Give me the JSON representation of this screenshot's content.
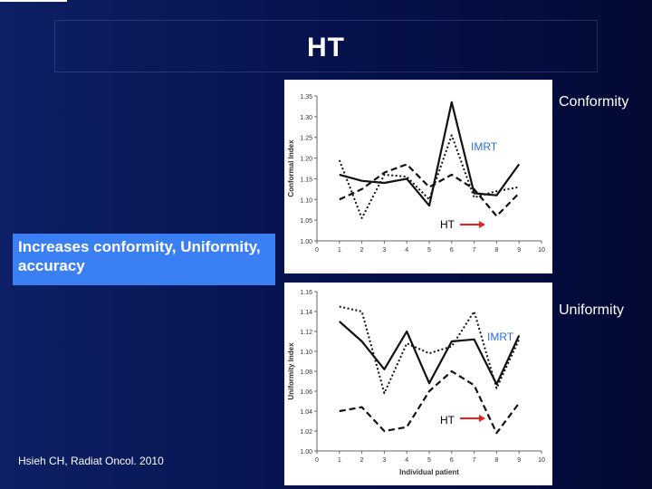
{
  "slide": {
    "title": "HT",
    "callout": "Increases conformity, Uniformity, accuracy",
    "citation": "Hsieh CH, Radiat Oncol. 2010",
    "labels": {
      "conformity": "Conformity",
      "uniformity": "Uniformity",
      "imrt_top": "IMRT",
      "ht_top": "HT",
      "imrt_bottom": "IMRT",
      "ht_bottom": "HT"
    },
    "colors": {
      "callout_bg": "#3b7ff5",
      "arrow": "#e81f1f",
      "annotation_blue": "#2a6fe0"
    }
  },
  "chart_data": [
    {
      "type": "line",
      "title": "",
      "xlabel": "",
      "ylabel": "Conformal Index",
      "xlim": [
        0,
        10
      ],
      "ylim": [
        1.0,
        1.35
      ],
      "xticks": [
        "0",
        "1",
        "2",
        "3",
        "4",
        "5",
        "6",
        "7",
        "8",
        "9",
        "10"
      ],
      "yticks": [
        "1.00",
        "1.05",
        "1.10",
        "1.15",
        "1.20",
        "1.25",
        "1.30",
        "1.35"
      ],
      "x": [
        1,
        2,
        3,
        4,
        5,
        6,
        7,
        8,
        9
      ],
      "series": [
        {
          "style": "solid",
          "values": [
            1.16,
            1.145,
            1.14,
            1.15,
            1.085,
            1.335,
            1.115,
            1.11,
            1.185
          ]
        },
        {
          "style": "dotted",
          "values": [
            1.195,
            1.055,
            1.16,
            1.155,
            1.1,
            1.255,
            1.105,
            1.12,
            1.13
          ]
        },
        {
          "style": "dashed",
          "values": [
            1.1,
            1.125,
            1.165,
            1.185,
            1.13,
            1.16,
            1.125,
            1.06,
            1.115
          ]
        }
      ]
    },
    {
      "type": "line",
      "title": "",
      "xlabel": "Individual patient",
      "ylabel": "Uniformity Index",
      "xlim": [
        0,
        10
      ],
      "ylim": [
        1.0,
        1.16
      ],
      "xticks": [
        "0",
        "1",
        "2",
        "3",
        "4",
        "5",
        "6",
        "7",
        "8",
        "9",
        "10"
      ],
      "yticks": [
        "1.00",
        "1.02",
        "1.04",
        "1.06",
        "1.08",
        "1.10",
        "1.12",
        "1.14",
        "1.16"
      ],
      "x": [
        1,
        2,
        3,
        4,
        5,
        6,
        7,
        8,
        9
      ],
      "series": [
        {
          "style": "solid",
          "values": [
            1.13,
            1.11,
            1.082,
            1.12,
            1.068,
            1.11,
            1.112,
            1.067,
            1.116
          ]
        },
        {
          "style": "dotted",
          "values": [
            1.145,
            1.14,
            1.058,
            1.108,
            1.098,
            1.105,
            1.14,
            1.063,
            1.112
          ]
        },
        {
          "style": "dashed",
          "values": [
            1.04,
            1.044,
            1.02,
            1.024,
            1.06,
            1.08,
            1.066,
            1.018,
            1.048
          ]
        }
      ]
    }
  ]
}
